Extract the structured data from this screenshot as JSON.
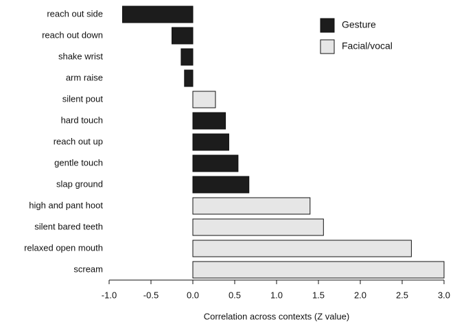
{
  "chart_data": {
    "type": "bar",
    "orientation": "horizontal",
    "categories": [
      "reach out side",
      "reach out down",
      "shake wrist",
      "arm raise",
      "silent pout",
      "hard touch",
      "reach out up",
      "gentle touch",
      "slap ground",
      "high and pant hoot",
      "silent bared teeth",
      "relaxed open mouth",
      "scream"
    ],
    "series": [
      {
        "name": "Gesture",
        "color": "#1c1c1c",
        "values": [
          -0.84,
          -0.25,
          -0.14,
          -0.1,
          null,
          0.39,
          0.43,
          0.54,
          0.67,
          null,
          null,
          null,
          null
        ]
      },
      {
        "name": "Facial/vocal",
        "color": "#e6e6e6",
        "values": [
          null,
          null,
          null,
          null,
          0.27,
          null,
          null,
          null,
          null,
          1.4,
          1.56,
          2.61,
          3.0
        ]
      }
    ],
    "xlim": [
      -1,
      3
    ],
    "xticks": [
      {
        "value": -1,
        "label": "-1.0"
      },
      -0.5,
      {
        "value": 0,
        "label": "0.0"
      },
      0.5,
      {
        "value": 1,
        "label": "1.0"
      },
      1.5,
      {
        "value": 2,
        "label": "2.0"
      },
      2.5,
      {
        "value": 3,
        "label": "3.0"
      }
    ],
    "xlabel": "Correlation across contexts (Z value)",
    "legend": "upper right"
  }
}
